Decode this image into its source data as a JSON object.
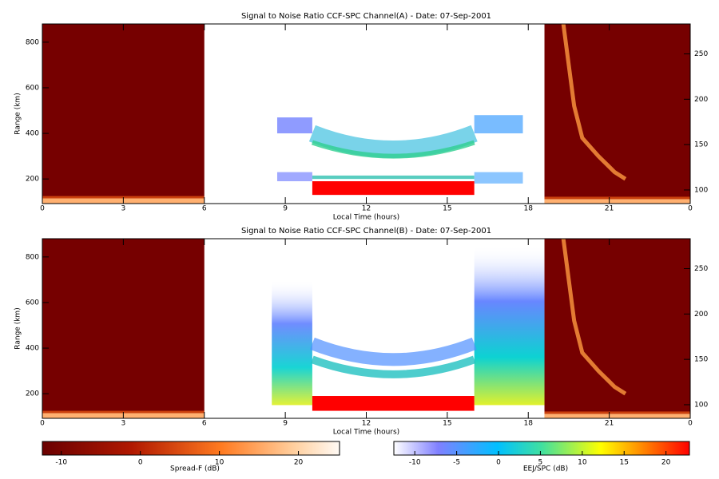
{
  "chart_data": [
    {
      "type": "heatmap",
      "title": "Signal to Noise Ratio CCF-SPC Channel(A) - Date: 07-Sep-2001",
      "xlabel": "Local Time (hours)",
      "ylabel": "Range (km)",
      "xlim": [
        0,
        24
      ],
      "xticks": [
        0,
        3,
        6,
        9,
        12,
        15,
        18,
        21,
        {
          "value": 24,
          "label": "0"
        }
      ],
      "ylim": [
        92,
        880
      ],
      "yticks": [
        200,
        400,
        600,
        800
      ],
      "y2lim": [
        85,
        283
      ],
      "y2ticks": [
        100,
        150,
        200,
        250
      ]
    },
    {
      "type": "heatmap",
      "title": "Signal to Noise Ratio CCF-SPC Channel(B) - Date: 07-Sep-2001",
      "xlabel": "Local Time (hours)",
      "ylabel": "Range (km)",
      "xlim": [
        0,
        24
      ],
      "xticks": [
        0,
        3,
        6,
        9,
        12,
        15,
        18,
        21,
        {
          "value": 24,
          "label": "0"
        }
      ],
      "ylim": [
        92,
        880
      ],
      "yticks": [
        200,
        400,
        600,
        800
      ],
      "y2lim": [
        85,
        283
      ],
      "y2ticks": [
        100,
        150,
        200,
        250
      ]
    }
  ],
  "colorbars": [
    {
      "label": "Spread-F (dB)",
      "lim": [
        -12.4,
        25.2
      ],
      "ticks": [
        -10,
        0,
        10,
        20
      ]
    },
    {
      "label": "EEJ/SPC (dB)",
      "lim": [
        -12.5,
        22.8
      ],
      "ticks": [
        -10,
        -5,
        0,
        5,
        10,
        15,
        20
      ]
    }
  ]
}
